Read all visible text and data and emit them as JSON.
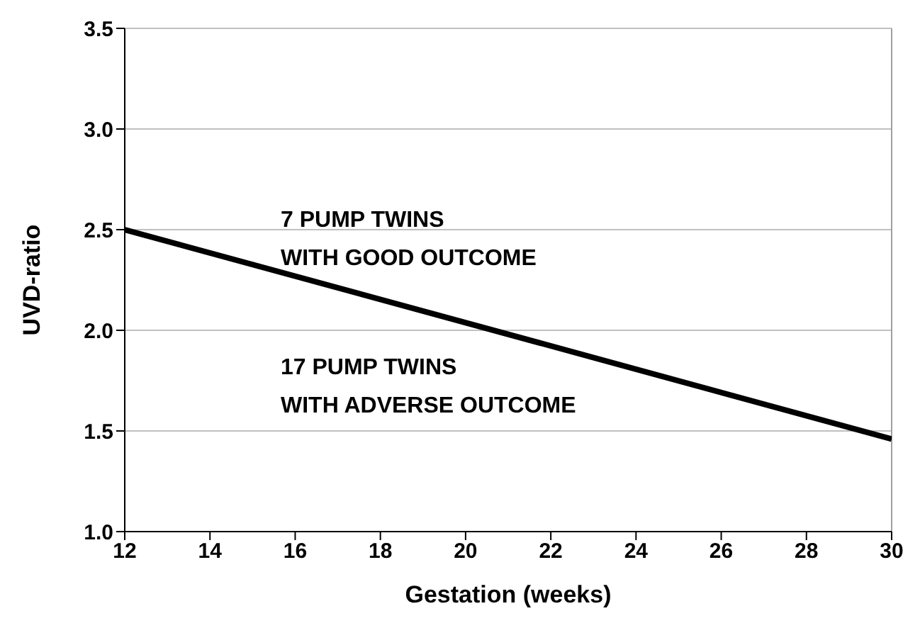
{
  "chart_data": {
    "type": "line",
    "xlabel": "Gestation (weeks)",
    "ylabel": "UVD-ratio",
    "x": [
      12,
      30
    ],
    "series": [
      {
        "color": "#000000",
        "values": [
          2.5,
          1.46
        ]
      }
    ],
    "xlim": [
      12,
      30
    ],
    "xticks": [
      12,
      14,
      16,
      18,
      20,
      22,
      24,
      26,
      28,
      30
    ],
    "ylim": [
      1.0,
      3.5
    ],
    "yticks": [
      {
        "value": 1.0,
        "label": "1.0"
      },
      {
        "value": 1.5,
        "label": "1.5"
      },
      {
        "value": 2.0,
        "label": "2.0"
      },
      {
        "value": 2.5,
        "label": "2.5"
      },
      {
        "value": 3.0,
        "label": "3.0"
      },
      {
        "value": 3.5,
        "label": "3.5"
      }
    ],
    "grid": "y",
    "marker": "none",
    "line_style": "solid",
    "annotations": [
      "7 PUMP TWINS\nWITH GOOD OUTCOME",
      "17 PUMP TWINS\nWITH ADVERSE OUTCOME"
    ]
  }
}
